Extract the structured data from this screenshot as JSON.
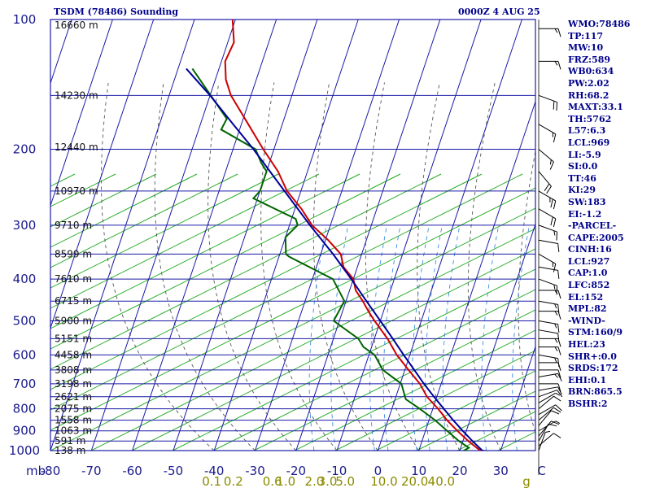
{
  "header": {
    "title": "TSDM (78486) Sounding",
    "datetime": "0000Z  4 AUG 25"
  },
  "indices": [
    "WMO:78486",
    "TP:117",
    "MW:10",
    "FRZ:589",
    "WB0:634",
    "PW:2.02",
    "RH:68.2",
    "MAXT:33.1",
    "TH:5762",
    "L57:6.3",
    "LCL:969",
    "LI:-5.9",
    "SI:0.0",
    "TT:46",
    "KI:29",
    "SW:183",
    "EI:-1.2",
    "-PARCEL-",
    "CAPE:2005",
    "CINH:16",
    "LCL:927",
    "CAP:1.0",
    "LFC:852",
    "EL:152",
    "MPL:82",
    "-WIND-",
    "STM:160/9",
    "HEL:23",
    "SHR+:0.0",
    "SRDS:172",
    "EHI:0.1",
    "BRN:865.5",
    "BSHR:2"
  ],
  "chart_data": {
    "type": "line",
    "title": "TSDM (78486) Sounding",
    "subtitle": "0000Z  4 AUG 25",
    "xlabel": "",
    "ylabel": "mb",
    "xlim": [
      -80,
      40
    ],
    "ylim": [
      1000,
      100
    ],
    "y_scale": "log",
    "pressure_ticks": [
      "100",
      "200",
      "300",
      "400",
      "500",
      "600",
      "700",
      "800",
      "900",
      "1000"
    ],
    "temp_ticks": [
      "-80",
      "-70",
      "-60",
      "-50",
      "-40",
      "-30",
      "-20",
      "-10",
      "0",
      "10",
      "20",
      "30",
      "C"
    ],
    "mixing_ratio_labels": [
      {
        "label": "0.1",
        "t": -40.6
      },
      {
        "label": "0.2",
        "t": -35.3
      },
      {
        "label": "0.6",
        "t": -25.8
      },
      {
        "label": "1.0",
        "t": -22.5
      },
      {
        "label": "2.0",
        "t": -15.5
      },
      {
        "label": "3.0",
        "t": -12.3
      },
      {
        "label": "5.0",
        "t": -8.0
      },
      {
        "label": "10.0",
        "t": 1.5
      },
      {
        "label": "20.0",
        "t": 9.0
      },
      {
        "label": "40.0",
        "t": 15.5
      }
    ],
    "mixing_ratio_suffix": "g",
    "heights": [
      {
        "p": 103,
        "label": "16660 m"
      },
      {
        "p": 150,
        "label": "14230 m"
      },
      {
        "p": 198,
        "label": "12440 m"
      },
      {
        "p": 250,
        "label": "10970 m"
      },
      {
        "p": 300,
        "label": "9710 m"
      },
      {
        "p": 350,
        "label": "8599 m"
      },
      {
        "p": 400,
        "label": "7610 m"
      },
      {
        "p": 450,
        "label": "6715 m"
      },
      {
        "p": 500,
        "label": "5900 m"
      },
      {
        "p": 550,
        "label": "5151 m"
      },
      {
        "p": 600,
        "label": "4458 m"
      },
      {
        "p": 650,
        "label": "3808 m"
      },
      {
        "p": 700,
        "label": "3198 m"
      },
      {
        "p": 750,
        "label": "2621 m"
      },
      {
        "p": 800,
        "label": "2075 m"
      },
      {
        "p": 850,
        "label": "1558 m"
      },
      {
        "p": 900,
        "label": "1063 m"
      },
      {
        "p": 950,
        "label": "591 m"
      },
      {
        "p": 1000,
        "label": "138 m"
      }
    ],
    "series": [
      {
        "color": "#cc0000",
        "points": [
          [
            100,
            -70.7
          ],
          [
            113,
            -68.5
          ],
          [
            125,
            -69.1
          ],
          [
            138,
            -67.4
          ],
          [
            150,
            -64.9
          ],
          [
            175,
            -58.3
          ],
          [
            200,
            -52.6
          ],
          [
            225,
            -47.2
          ],
          [
            250,
            -43.4
          ],
          [
            275,
            -38.4
          ],
          [
            300,
            -34.5
          ],
          [
            325,
            -29.3
          ],
          [
            350,
            -25.1
          ],
          [
            375,
            -23.4
          ],
          [
            400,
            -20.0
          ],
          [
            425,
            -18.5
          ],
          [
            450,
            -15.9
          ],
          [
            475,
            -13.7
          ],
          [
            500,
            -11.4
          ],
          [
            550,
            -6.8
          ],
          [
            600,
            -3.2
          ],
          [
            650,
            0.9
          ],
          [
            700,
            4.8
          ],
          [
            750,
            7.6
          ],
          [
            800,
            11.3
          ],
          [
            850,
            14.4
          ],
          [
            900,
            17.8
          ],
          [
            950,
            21.3
          ],
          [
            1000,
            25.0
          ],
          [
            1010,
            29.0
          ]
        ]
      },
      {
        "color": "#006400",
        "points": [
          [
            130,
            -76.5
          ],
          [
            170,
            -64.0
          ],
          [
            180,
            -64.5
          ],
          [
            200,
            -54.5
          ],
          [
            215,
            -52.0
          ],
          [
            225,
            -50.0
          ],
          [
            250,
            -50.0
          ],
          [
            260,
            -51.0
          ],
          [
            290,
            -39.0
          ],
          [
            300,
            -38.0
          ],
          [
            320,
            -40.0
          ],
          [
            350,
            -38.5
          ],
          [
            355,
            -37.5
          ],
          [
            400,
            -25.0
          ],
          [
            450,
            -20.4
          ],
          [
            500,
            -21.4
          ],
          [
            550,
            -13.9
          ],
          [
            575,
            -12.0
          ],
          [
            600,
            -8.6
          ],
          [
            650,
            -5.4
          ],
          [
            700,
            0.3
          ],
          [
            760,
            2.6
          ],
          [
            800,
            6.8
          ],
          [
            850,
            11.5
          ],
          [
            900,
            15.3
          ],
          [
            950,
            19.0
          ],
          [
            985,
            22.0
          ],
          [
            1000,
            21.0
          ],
          [
            1010,
            27.0
          ]
        ]
      },
      {
        "color": "#000099",
        "points": [
          [
            130,
            -78.0
          ],
          [
            150,
            -70.0
          ],
          [
            175,
            -62.0
          ],
          [
            200,
            -55.0
          ],
          [
            250,
            -44.0
          ],
          [
            300,
            -35.0
          ],
          [
            350,
            -27.0
          ],
          [
            400,
            -20.5
          ],
          [
            450,
            -15.0
          ],
          [
            500,
            -10.0
          ],
          [
            550,
            -5.5
          ],
          [
            600,
            -1.5
          ],
          [
            650,
            2.3
          ],
          [
            700,
            5.8
          ],
          [
            750,
            9.3
          ],
          [
            800,
            12.7
          ],
          [
            850,
            15.9
          ],
          [
            900,
            19.1
          ],
          [
            950,
            22.3
          ],
          [
            1000,
            25.5
          ],
          [
            1010,
            29.0
          ]
        ]
      }
    ],
    "wind_barbs": [
      {
        "p": 105,
        "dir": 270,
        "spd": 15
      },
      {
        "p": 125,
        "dir": 270,
        "spd": 15
      },
      {
        "p": 150,
        "dir": 290,
        "spd": 20
      },
      {
        "p": 175,
        "dir": 300,
        "spd": 15
      },
      {
        "p": 200,
        "dir": 310,
        "spd": 15
      },
      {
        "p": 225,
        "dir": 320,
        "spd": 20
      },
      {
        "p": 250,
        "dir": 300,
        "spd": 25
      },
      {
        "p": 275,
        "dir": 300,
        "spd": 20
      },
      {
        "p": 300,
        "dir": 290,
        "spd": 15
      },
      {
        "p": 325,
        "dir": 280,
        "spd": 10
      },
      {
        "p": 350,
        "dir": 300,
        "spd": 15
      },
      {
        "p": 375,
        "dir": 280,
        "spd": 10
      },
      {
        "p": 400,
        "dir": 290,
        "spd": 15
      },
      {
        "p": 425,
        "dir": 270,
        "spd": 15
      },
      {
        "p": 450,
        "dir": 280,
        "spd": 15
      },
      {
        "p": 475,
        "dir": 270,
        "spd": 15
      },
      {
        "p": 500,
        "dir": 280,
        "spd": 15
      },
      {
        "p": 525,
        "dir": 280,
        "spd": 10
      },
      {
        "p": 550,
        "dir": 270,
        "spd": 15
      },
      {
        "p": 575,
        "dir": 270,
        "spd": 15
      },
      {
        "p": 600,
        "dir": 280,
        "spd": 15
      },
      {
        "p": 625,
        "dir": 270,
        "spd": 10
      },
      {
        "p": 650,
        "dir": 270,
        "spd": 10
      },
      {
        "p": 675,
        "dir": 260,
        "spd": 15
      },
      {
        "p": 700,
        "dir": 270,
        "spd": 10
      },
      {
        "p": 725,
        "dir": 260,
        "spd": 10
      },
      {
        "p": 750,
        "dir": 250,
        "spd": 10
      },
      {
        "p": 775,
        "dir": 240,
        "spd": 5
      },
      {
        "p": 800,
        "dir": 230,
        "spd": 10
      },
      {
        "p": 825,
        "dir": 240,
        "spd": 10
      },
      {
        "p": 850,
        "dir": 230,
        "spd": 10
      },
      {
        "p": 875,
        "dir": 220,
        "spd": 10
      },
      {
        "p": 900,
        "dir": 240,
        "spd": 5
      },
      {
        "p": 925,
        "dir": 220,
        "spd": 10
      },
      {
        "p": 950,
        "dir": 210,
        "spd": 10
      },
      {
        "p": 975,
        "dir": 230,
        "spd": 10
      },
      {
        "p": 1000,
        "dir": 200,
        "spd": 5
      }
    ],
    "grid": true
  }
}
